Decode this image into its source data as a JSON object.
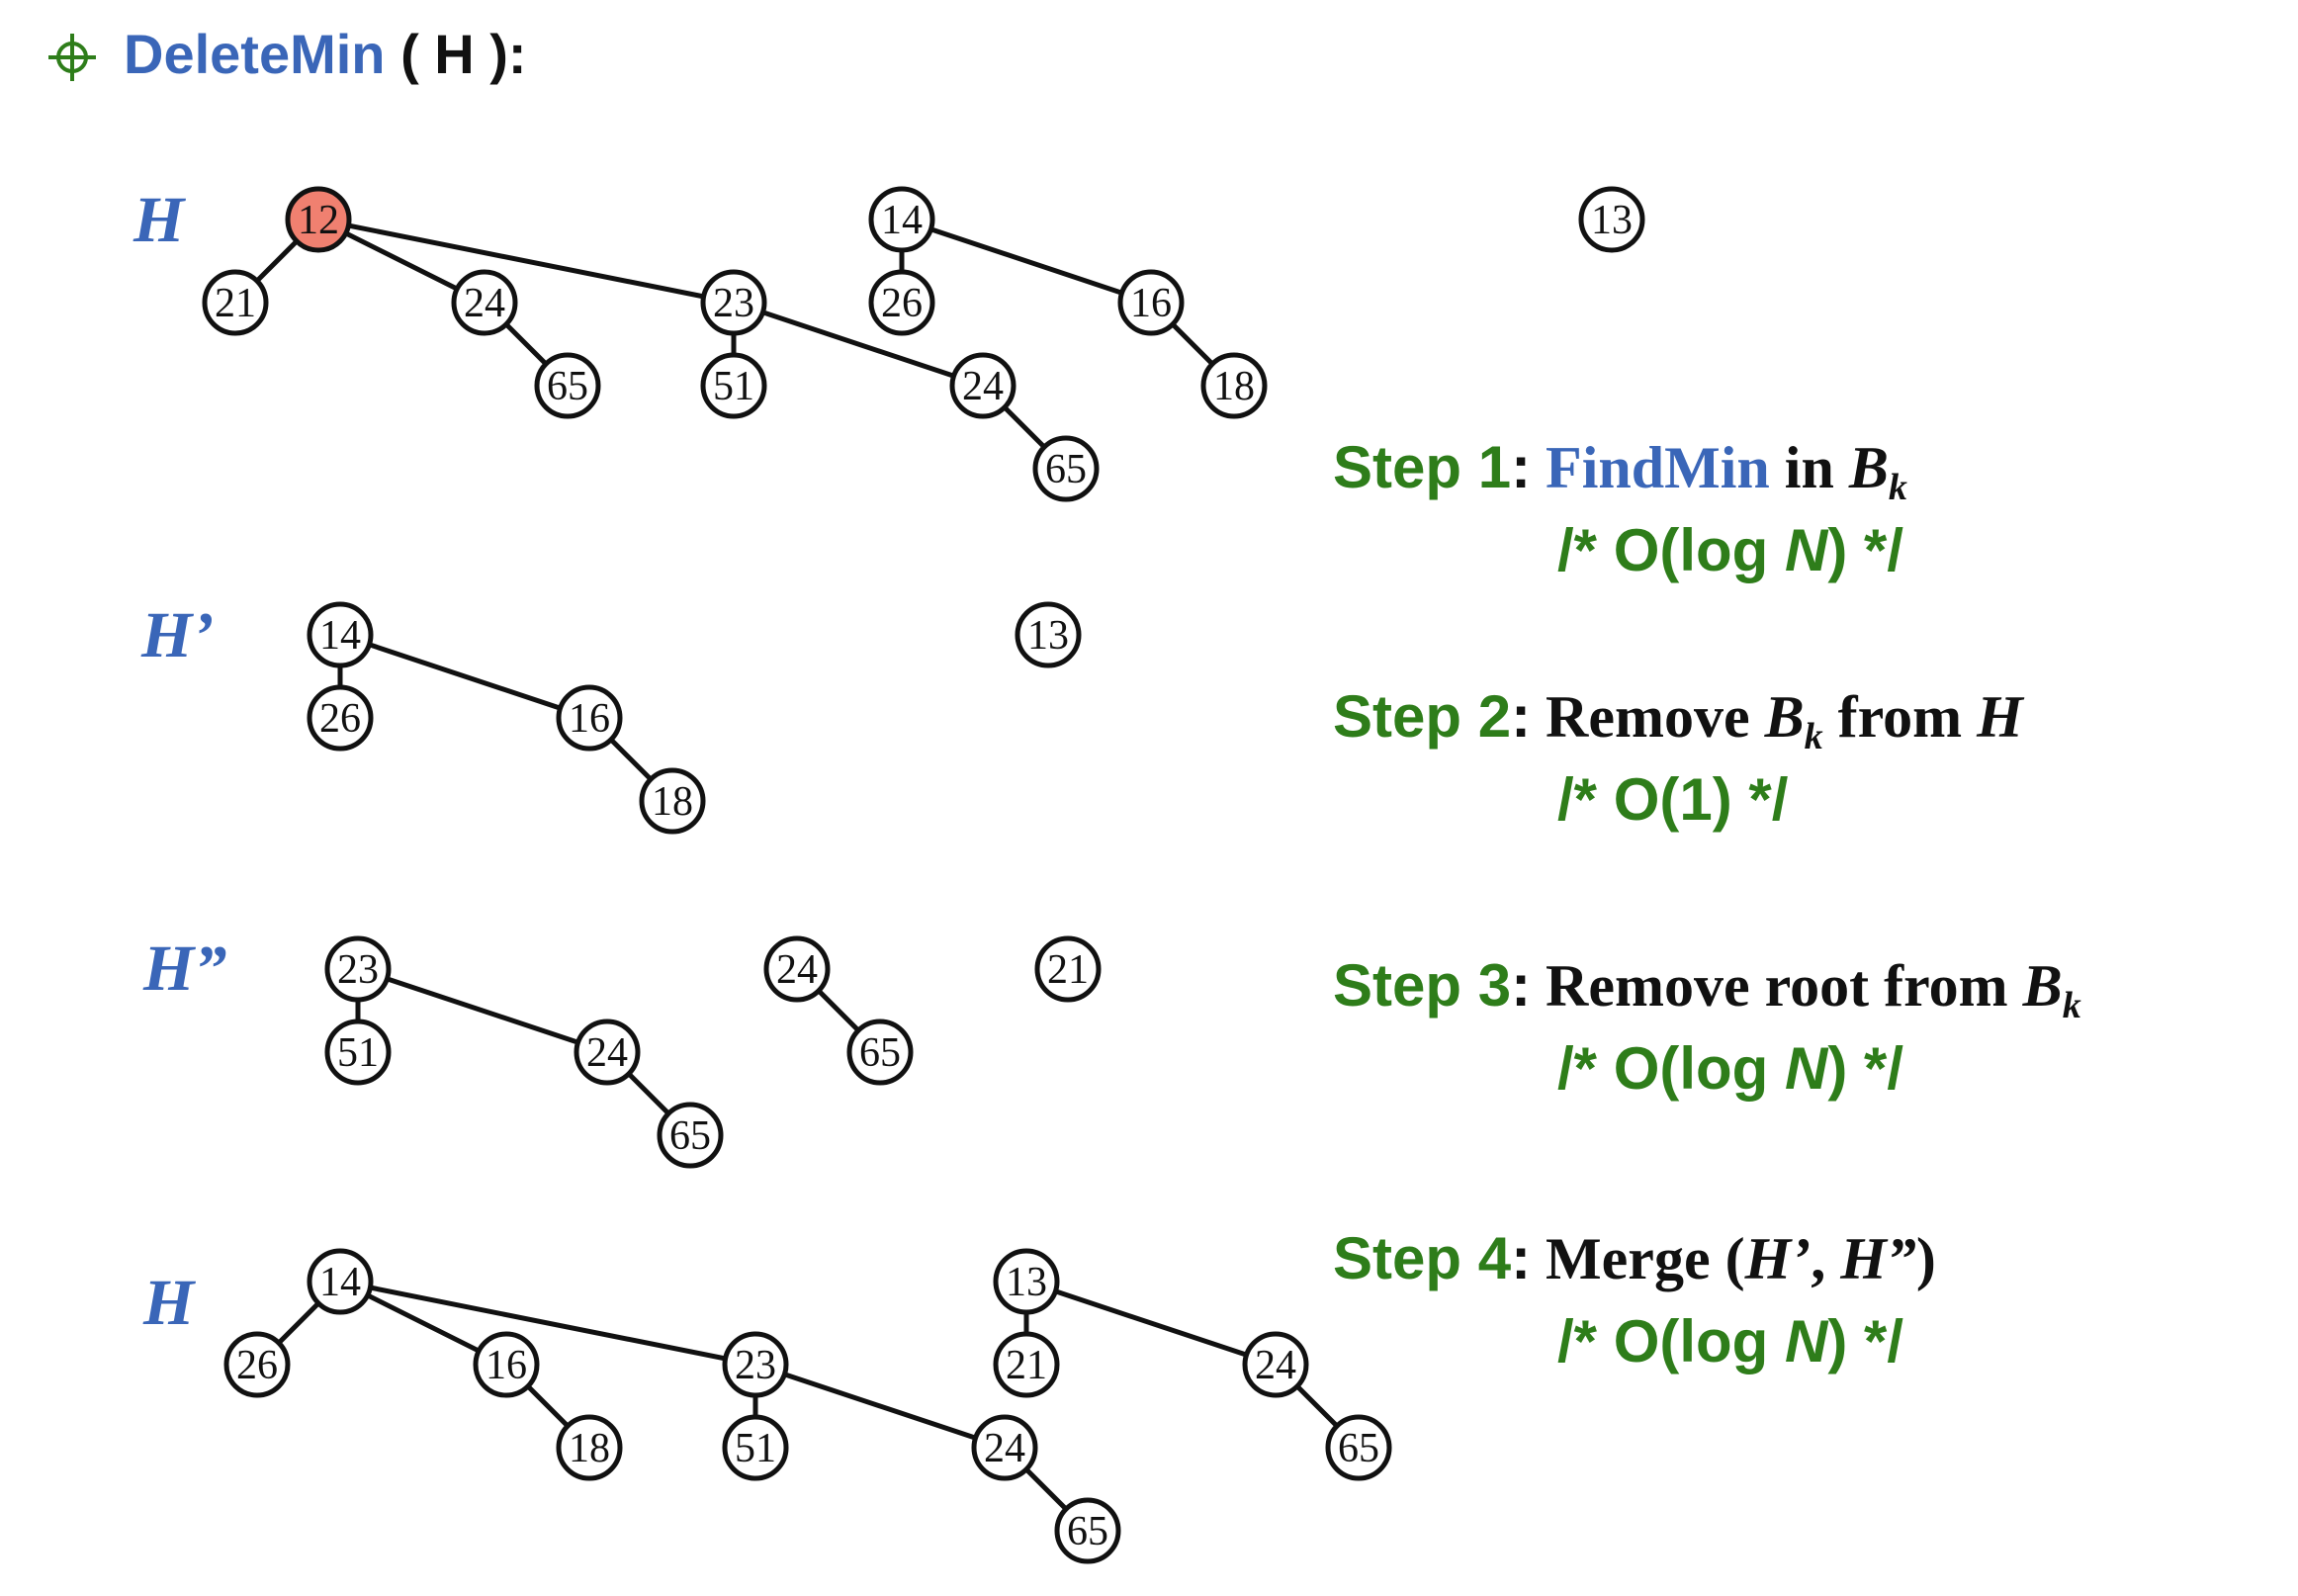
{
  "title": {
    "function": "DeleteMin",
    "args": "( H ):",
    "icon": "crosshair-bullet-icon"
  },
  "heaps": [
    {
      "label": "H",
      "trees": [
        {
          "key": "12",
          "highlight": true,
          "children": [
            {
              "key": "21"
            },
            {
              "key": "24",
              "children": [
                {
                  "key": "65"
                }
              ]
            },
            {
              "key": "23",
              "children": [
                {
                  "key": "51"
                },
                {
                  "key": "24",
                  "children": [
                    {
                      "key": "65"
                    }
                  ]
                }
              ]
            }
          ]
        },
        {
          "key": "14",
          "children": [
            {
              "key": "26"
            },
            {
              "key": "16",
              "children": [
                {
                  "key": "18"
                }
              ]
            }
          ]
        },
        {
          "key": "13"
        }
      ]
    },
    {
      "label": "H’",
      "trees": [
        {
          "key": "14",
          "children": [
            {
              "key": "26"
            },
            {
              "key": "16",
              "children": [
                {
                  "key": "18"
                }
              ]
            }
          ]
        },
        {
          "key": "13"
        }
      ]
    },
    {
      "label": "H”",
      "trees": [
        {
          "key": "23",
          "children": [
            {
              "key": "51"
            },
            {
              "key": "24",
              "children": [
                {
                  "key": "65"
                }
              ]
            }
          ]
        },
        {
          "key": "24",
          "children": [
            {
              "key": "65"
            }
          ]
        },
        {
          "key": "21"
        }
      ]
    },
    {
      "label": "H",
      "trees": [
        {
          "key": "14",
          "children": [
            {
              "key": "26"
            },
            {
              "key": "16",
              "children": [
                {
                  "key": "18"
                }
              ]
            },
            {
              "key": "23",
              "children": [
                {
                  "key": "51"
                },
                {
                  "key": "24",
                  "children": [
                    {
                      "key": "65"
                    }
                  ]
                }
              ]
            }
          ]
        },
        {
          "key": "13",
          "children": [
            {
              "key": "21"
            },
            {
              "key": "24",
              "children": [
                {
                  "key": "65"
                }
              ]
            }
          ]
        }
      ]
    }
  ],
  "steps": [
    {
      "label": "Step 1",
      "colon": ":",
      "text_pre": " ",
      "highlight": "FindMin",
      "text": " in ",
      "var": "B",
      "sub": "k",
      "var2": "",
      "tail": "",
      "cost_pre": "/* O(log ",
      "cost_var": "N",
      "cost_post": ") */"
    },
    {
      "label": "Step 2",
      "colon": ":",
      "text_pre": " Remove ",
      "highlight": "",
      "text": "",
      "var": "B",
      "sub": "k",
      "var2": "H",
      "tail": " from ",
      "cost_pre": "/* O(1) */",
      "cost_var": "",
      "cost_post": ""
    },
    {
      "label": "Step 3",
      "colon": ":",
      "text_pre": " Remove root from ",
      "highlight": "",
      "text": "",
      "var": "B",
      "sub": "k",
      "var2": "",
      "tail": "",
      "cost_pre": "/* O(log ",
      "cost_var": "N",
      "cost_post": ") */"
    },
    {
      "label": "Step 4",
      "colon": ":",
      "text_pre": " Merge (",
      "highlight": "",
      "text": "",
      "var": "H’",
      "sub": "",
      "var2": "H”",
      "tail": ", ",
      "close": ")",
      "cost_pre": "/* O(log ",
      "cost_var": "N",
      "cost_post": ") */"
    }
  ],
  "colors": {
    "accent_blue": "#3a66b8",
    "step_green": "#2e7d1a",
    "highlight_node": "#f08070"
  }
}
